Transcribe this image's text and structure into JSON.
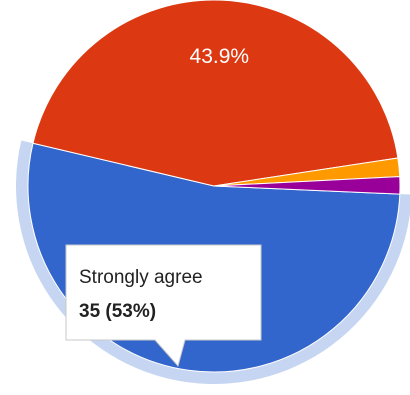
{
  "chart_data": {
    "type": "pie",
    "slices": [
      {
        "label": "Strongly agree",
        "percent": 53.0,
        "count": 35,
        "color": "#3366CC",
        "highlighted": true
      },
      {
        "label": "",
        "percent": 43.9,
        "color": "#DC3912",
        "display_label": "43.9%"
      },
      {
        "label": "",
        "percent": 1.6,
        "color": "#FF9900"
      },
      {
        "label": "",
        "percent": 1.5,
        "color": "#990099"
      }
    ],
    "highlight_ring_color": "#C6D6F2",
    "tooltip": {
      "label": "Strongly agree",
      "value": "35 (53%)"
    }
  }
}
